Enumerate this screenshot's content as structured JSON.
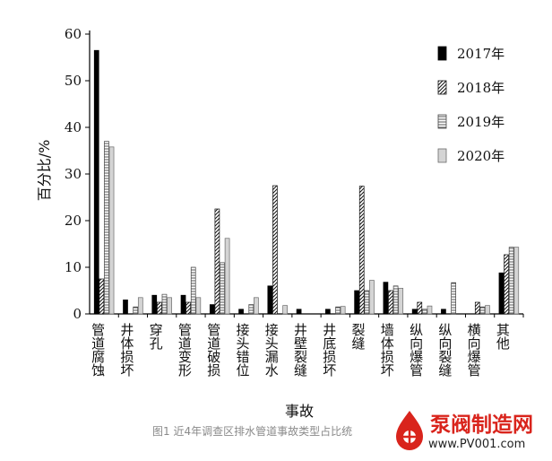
{
  "chart_data": {
    "type": "bar",
    "title": "",
    "xlabel": "事故",
    "ylabel": "百分比/%",
    "ylim": [
      0,
      60
    ],
    "yticks": [
      "0",
      "10",
      "20",
      "30",
      "40",
      "50",
      "60"
    ],
    "grid": false,
    "legend_position": "top-right",
    "categories": [
      "管道腐蚀",
      "井体损坏",
      "穿孔",
      "管道变形",
      "管道破损",
      "接头错位",
      "接头漏水",
      "井壁裂缝",
      "井底损坏",
      "裂缝",
      "墙体损坏",
      "纵向爆管",
      "纵向裂缝",
      "横向爆管",
      "其他"
    ],
    "series": [
      {
        "name": "2017年",
        "style": "solid-black",
        "values": [
          56.5,
          3.0,
          4.0,
          4.0,
          2.0,
          1.0,
          6.0,
          1.0,
          1.0,
          5.0,
          6.8,
          1.0,
          1.0,
          0,
          8.8
        ]
      },
      {
        "name": "2018年",
        "style": "diagonal-hatch",
        "values": [
          7.5,
          0,
          2.5,
          2.5,
          22.5,
          0,
          27.5,
          0,
          0,
          27.4,
          5.0,
          2.5,
          0,
          2.5,
          12.7
        ]
      },
      {
        "name": "2019年",
        "style": "horizontal-lines",
        "values": [
          37.0,
          1.5,
          4.2,
          10.0,
          11.0,
          2.0,
          0,
          0,
          1.5,
          5.0,
          6.0,
          1.0,
          6.7,
          1.5,
          14.3
        ]
      },
      {
        "name": "2020年",
        "style": "light-gray",
        "values": [
          35.8,
          3.5,
          3.5,
          3.5,
          16.2,
          3.5,
          1.8,
          0,
          1.6,
          7.2,
          5.5,
          1.7,
          0,
          1.8,
          14.3
        ]
      }
    ]
  },
  "caption": "图1 近4年调查区排水管道事故类型占比统",
  "watermark": {
    "name": "泵阀制造网",
    "url": "www.PV001.com",
    "logo_icon": "pump-valve-logo-icon",
    "brand_color": "#d9241c"
  }
}
